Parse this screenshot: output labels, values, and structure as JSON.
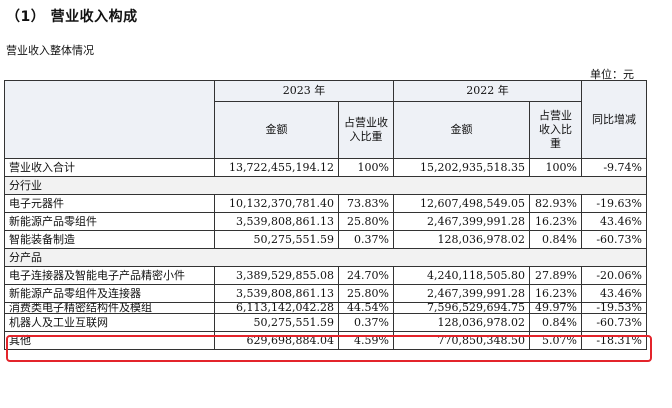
{
  "heading": "（1）  营业收入构成",
  "subtitle": "营业收入整体情况",
  "unit": "单位：元",
  "table": {
    "year_2023": "2023 年",
    "year_2022": "2022 年",
    "col_amount_2023": "金额",
    "col_share_2023": "占营业收入比重",
    "col_amount_2022": "金额",
    "col_share_2022": "占营业收入比重",
    "col_change": "同比增减",
    "rows": [
      {
        "label": "营业收入合计",
        "a2023": "13,722,455,194.12",
        "s2023": "100%",
        "a2022": "15,202,935,518.35",
        "s2022": "100%",
        "change": "-9.74%"
      },
      {
        "label": "分行业"
      },
      {
        "label": "电子元器件",
        "a2023": "10,132,370,781.40",
        "s2023": "73.83%",
        "a2022": "12,607,498,549.05",
        "s2022": "82.93%",
        "change": "-19.63%"
      },
      {
        "label": "新能源产品零组件",
        "a2023": "3,539,808,861.13",
        "s2023": "25.80%",
        "a2022": "2,467,399,991.28",
        "s2022": "16.23%",
        "change": "43.46%"
      },
      {
        "label": "智能装备制造",
        "a2023": "50,275,551.59",
        "s2023": "0.37%",
        "a2022": "128,036,978.02",
        "s2022": "0.84%",
        "change": "-60.73%"
      },
      {
        "label": "分产品"
      },
      {
        "label": "电子连接器及智能电子产品精密小件",
        "a2023": "3,389,529,855.08",
        "s2023": "24.70%",
        "a2022": "4,240,118,505.80",
        "s2022": "27.89%",
        "change": "-20.06%"
      },
      {
        "label": "新能源产品零组件及连接器",
        "a2023": "3,539,808,861.13",
        "s2023": "25.80%",
        "a2022": "2,467,399,991.28",
        "s2022": "16.23%",
        "change": "43.46%"
      },
      {
        "label": "消费类电子精密结构件及模组",
        "a2023": "6,113,142,042.28",
        "s2023": "44.54%",
        "a2022": "7,596,529,694.75",
        "s2022": "49.97%",
        "change": "-19.53%"
      },
      {
        "label": "机器人及工业互联网",
        "a2023": "50,275,551.59",
        "s2023": "0.37%",
        "a2022": "128,036,978.02",
        "s2022": "0.84%",
        "change": "-60.73%"
      },
      {
        "label": "其他",
        "a2023": "629,698,884.04",
        "s2023": "4.59%",
        "a2022": "770,850,348.50",
        "s2022": "5.07%",
        "change": "-18.31%"
      }
    ]
  },
  "highlight_color": "#e3242b"
}
